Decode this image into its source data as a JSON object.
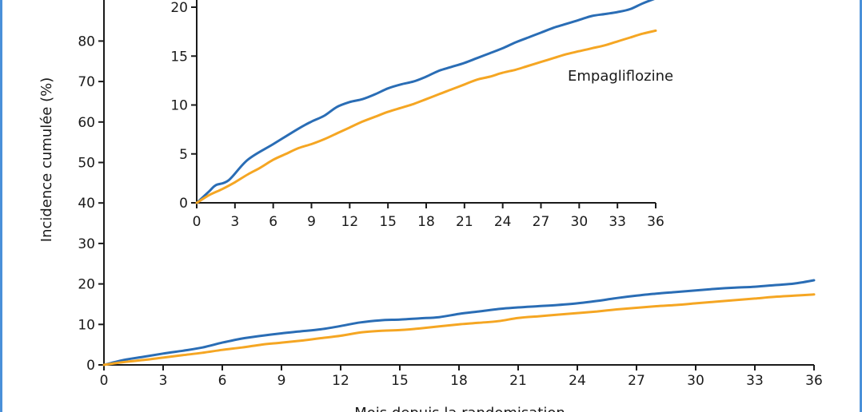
{
  "chart_data": [
    {
      "type": "line",
      "xlabel": "Mois depuis la randomisation",
      "ylabel": "Incidence cumulée (%)",
      "xlim": [
        0,
        36
      ],
      "ylim": [
        0,
        100
      ],
      "x_ticks": [
        0,
        3,
        6,
        9,
        12,
        15,
        18,
        21,
        24,
        27,
        30,
        33,
        36
      ],
      "y_ticks": [
        0,
        10,
        20,
        30,
        40,
        50,
        60,
        70,
        80
      ],
      "y_tick_labels": [
        "0",
        "10",
        "20",
        "30",
        "40",
        "50",
        "60",
        "70",
        "80"
      ],
      "grid": false,
      "series": [
        {
          "color": "#2a6db5",
          "x": [
            0,
            1,
            2,
            3,
            4,
            5,
            6,
            7,
            8,
            9,
            10,
            11,
            12,
            13,
            14,
            15,
            16,
            17,
            18,
            19,
            20,
            21,
            22,
            23,
            24,
            25,
            26,
            27,
            28,
            29,
            30,
            31,
            32,
            33,
            34,
            35,
            36
          ],
          "y": [
            0,
            1.2,
            2.0,
            2.8,
            3.5,
            4.3,
            5.5,
            6.5,
            7.2,
            7.8,
            8.3,
            8.8,
            9.6,
            10.5,
            11.0,
            11.2,
            11.5,
            11.8,
            12.6,
            13.2,
            13.8,
            14.2,
            14.5,
            14.8,
            15.2,
            15.8,
            16.5,
            17.1,
            17.6,
            18.0,
            18.4,
            18.8,
            19.1,
            19.3,
            19.7,
            20.1,
            20.9
          ]
        },
        {
          "color": "#f5a623",
          "x": [
            0,
            1,
            2,
            3,
            4,
            5,
            6,
            7,
            8,
            9,
            10,
            11,
            12,
            13,
            14,
            15,
            16,
            17,
            18,
            19,
            20,
            21,
            22,
            23,
            24,
            25,
            26,
            27,
            28,
            29,
            30,
            31,
            32,
            33,
            34,
            35,
            36
          ],
          "y": [
            0,
            0.7,
            1.2,
            1.8,
            2.4,
            3.0,
            3.7,
            4.3,
            5.0,
            5.5,
            6.0,
            6.6,
            7.2,
            8.0,
            8.4,
            8.6,
            9.0,
            9.5,
            10.0,
            10.4,
            10.8,
            11.6,
            12.0,
            12.4,
            12.8,
            13.2,
            13.7,
            14.1,
            14.5,
            14.8,
            15.2,
            15.6,
            16.0,
            16.4,
            16.8,
            17.1,
            17.4
          ]
        }
      ]
    },
    {
      "type": "line",
      "xlim": [
        0,
        36
      ],
      "ylim": [
        0,
        20
      ],
      "x_ticks": [
        0,
        3,
        6,
        9,
        12,
        15,
        18,
        21,
        24,
        27,
        30,
        33,
        36
      ],
      "y_ticks": [
        0,
        5,
        10,
        15,
        20
      ],
      "grid": false,
      "annotations": [
        {
          "text": "Empagliflozine"
        }
      ],
      "series": [
        {
          "color": "#2a6db5",
          "x": [
            0,
            1,
            1.5,
            2.5,
            4,
            6,
            8,
            9,
            10,
            11,
            12,
            13,
            14,
            15,
            16,
            17,
            18,
            19,
            20,
            21,
            22,
            23,
            24,
            25,
            26,
            27,
            28,
            29,
            30,
            31,
            32,
            33,
            34,
            35,
            36
          ],
          "y": [
            0,
            1.2,
            1.8,
            2.3,
            4.4,
            6.0,
            7.6,
            8.3,
            8.9,
            9.8,
            10.3,
            10.6,
            11.1,
            11.7,
            12.1,
            12.4,
            12.9,
            13.5,
            13.9,
            14.3,
            14.8,
            15.3,
            15.8,
            16.4,
            16.9,
            17.4,
            17.9,
            18.3,
            18.7,
            19.1,
            19.3,
            19.5,
            19.8,
            20.4,
            20.9
          ]
        },
        {
          "color": "#f5a623",
          "x": [
            0,
            1,
            2,
            3,
            4,
            5,
            6,
            7,
            8,
            9,
            10,
            11,
            12,
            13,
            14,
            15,
            16,
            17,
            18,
            19,
            20,
            21,
            22,
            23,
            24,
            25,
            26,
            27,
            28,
            29,
            30,
            31,
            32,
            33,
            34,
            35,
            36
          ],
          "y": [
            0,
            0.8,
            1.4,
            2.1,
            2.9,
            3.6,
            4.4,
            5.0,
            5.6,
            6.0,
            6.5,
            7.1,
            7.7,
            8.3,
            8.8,
            9.3,
            9.7,
            10.1,
            10.6,
            11.1,
            11.6,
            12.1,
            12.6,
            12.9,
            13.3,
            13.6,
            14.0,
            14.4,
            14.8,
            15.2,
            15.5,
            15.8,
            16.1,
            16.5,
            16.9,
            17.3,
            17.6
          ]
        }
      ]
    }
  ]
}
